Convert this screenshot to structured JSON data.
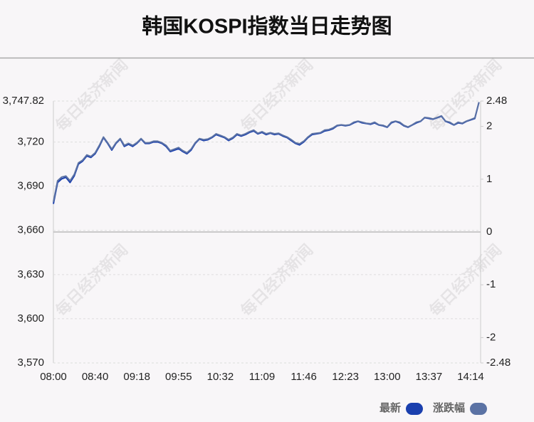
{
  "chart_data": {
    "type": "line",
    "title": "韩国KOSPI指数当日走势图",
    "watermark": "每日经济新闻",
    "categories": [
      "08:00",
      null,
      null,
      null,
      null,
      null,
      null,
      null,
      null,
      null,
      "08:40",
      null,
      null,
      null,
      null,
      null,
      null,
      null,
      null,
      null,
      "09:18",
      null,
      null,
      null,
      null,
      null,
      null,
      null,
      null,
      null,
      "09:55",
      null,
      null,
      null,
      null,
      null,
      null,
      null,
      null,
      null,
      "10:32",
      null,
      null,
      null,
      null,
      null,
      null,
      null,
      null,
      null,
      "11:09",
      null,
      null,
      null,
      null,
      null,
      null,
      null,
      null,
      null,
      "11:46",
      null,
      null,
      null,
      null,
      null,
      null,
      null,
      null,
      null,
      "12:23",
      null,
      null,
      null,
      null,
      null,
      null,
      null,
      null,
      null,
      "13:00",
      null,
      null,
      null,
      null,
      null,
      null,
      null,
      null,
      null,
      "13:37",
      null,
      null,
      null,
      null,
      null,
      null,
      null,
      null,
      null,
      "14:14",
      null,
      null
    ],
    "series": [
      {
        "name": "最新",
        "color": "#1a3fae",
        "values": [
          3678,
          3692.5,
          3695,
          3696,
          3692.5,
          3697,
          3705,
          3707,
          3710.5,
          3709.5,
          3712,
          3717,
          3723,
          3719,
          3714.5,
          3719,
          3722,
          3717,
          3718.5,
          3717,
          3719,
          3722,
          3719,
          3719,
          3720,
          3720,
          3719,
          3717,
          3713.5,
          3714.5,
          3715.5,
          3713.5,
          3712,
          3714.5,
          3719,
          3722,
          3721,
          3721.5,
          3723,
          3725,
          3724,
          3723,
          3721,
          3722.5,
          3725,
          3724,
          3725,
          3726.5,
          3727.5,
          3725.5,
          3726.5,
          3725,
          3726,
          3725,
          3725.5,
          3724,
          3723,
          3721,
          3719,
          3718,
          3720,
          3723,
          3725,
          3725.5,
          3726,
          3727.5,
          3728,
          3729,
          3731,
          3731.5,
          3731,
          3731.5,
          3733,
          3734,
          3733,
          3732.5,
          3732,
          3733,
          3731.5,
          3731,
          3730,
          3733,
          3734,
          3733,
          3731,
          3730,
          3731.5,
          3733,
          3734,
          3736.5,
          3736,
          3735.5,
          3736.5,
          3737.5,
          3734,
          3733,
          3731.5,
          3733,
          3732.5,
          3734,
          3735,
          3736,
          3747
        ]
      },
      {
        "name": "涨跌幅",
        "color": "#5b72a4",
        "axis": "y2",
        "values": [
          0.57,
          0.97,
          1.04,
          1.06,
          0.97,
          1.09,
          1.31,
          1.36,
          1.46,
          1.43,
          1.5,
          1.64,
          1.8,
          1.69,
          1.57,
          1.69,
          1.77,
          1.64,
          1.68,
          1.64,
          1.69,
          1.77,
          1.69,
          1.69,
          1.72,
          1.72,
          1.69,
          1.64,
          1.54,
          1.57,
          1.6,
          1.54,
          1.5,
          1.57,
          1.69,
          1.77,
          1.75,
          1.76,
          1.8,
          1.86,
          1.83,
          1.8,
          1.75,
          1.79,
          1.86,
          1.83,
          1.86,
          1.9,
          1.93,
          1.87,
          1.9,
          1.86,
          1.88,
          1.86,
          1.87,
          1.83,
          1.8,
          1.75,
          1.69,
          1.67,
          1.72,
          1.8,
          1.86,
          1.87,
          1.88,
          1.93,
          1.94,
          1.97,
          2.02,
          2.03,
          2.02,
          2.03,
          2.08,
          2.1,
          2.08,
          2.06,
          2.05,
          2.08,
          2.03,
          2.02,
          1.99,
          2.08,
          2.1,
          2.08,
          2.02,
          1.99,
          2.03,
          2.08,
          2.1,
          2.17,
          2.16,
          2.14,
          2.17,
          2.2,
          2.1,
          2.08,
          2.03,
          2.08,
          2.06,
          2.1,
          2.13,
          2.16,
          2.46
        ]
      }
    ],
    "ylim": [
      3570,
      3747.82
    ],
    "yticks": [
      {
        "value": 3570,
        "label": "3,570"
      },
      {
        "value": 3600,
        "label": "3,600"
      },
      {
        "value": 3630,
        "label": "3,630"
      },
      {
        "value": 3660,
        "label": "3,660"
      },
      {
        "value": 3690,
        "label": "3,690"
      },
      {
        "value": 3720,
        "label": "3,720"
      },
      {
        "value": 3747.82,
        "label": "3,747.82"
      }
    ],
    "y2lim": [
      -2.48,
      2.48
    ],
    "y2ticks": [
      -2.48,
      -2,
      -1,
      0,
      1,
      2,
      2.48
    ],
    "grid": true
  }
}
